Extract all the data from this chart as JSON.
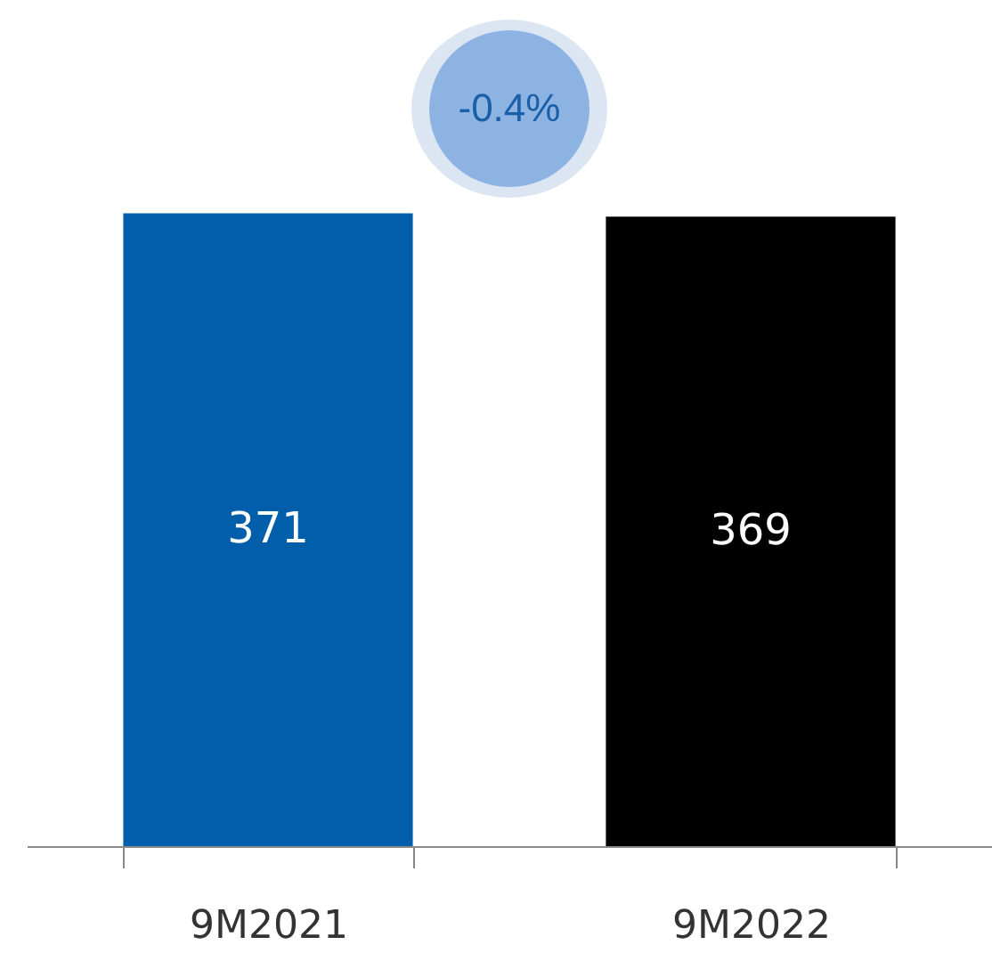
{
  "chart_data": {
    "type": "bar",
    "categories": [
      "9M2021",
      "9M2022"
    ],
    "colors": [
      "#005eaa",
      "#000000"
    ],
    "values": [
      371,
      369
    ],
    "data_labels": true,
    "annotations": [
      "-0.4%"
    ]
  }
}
